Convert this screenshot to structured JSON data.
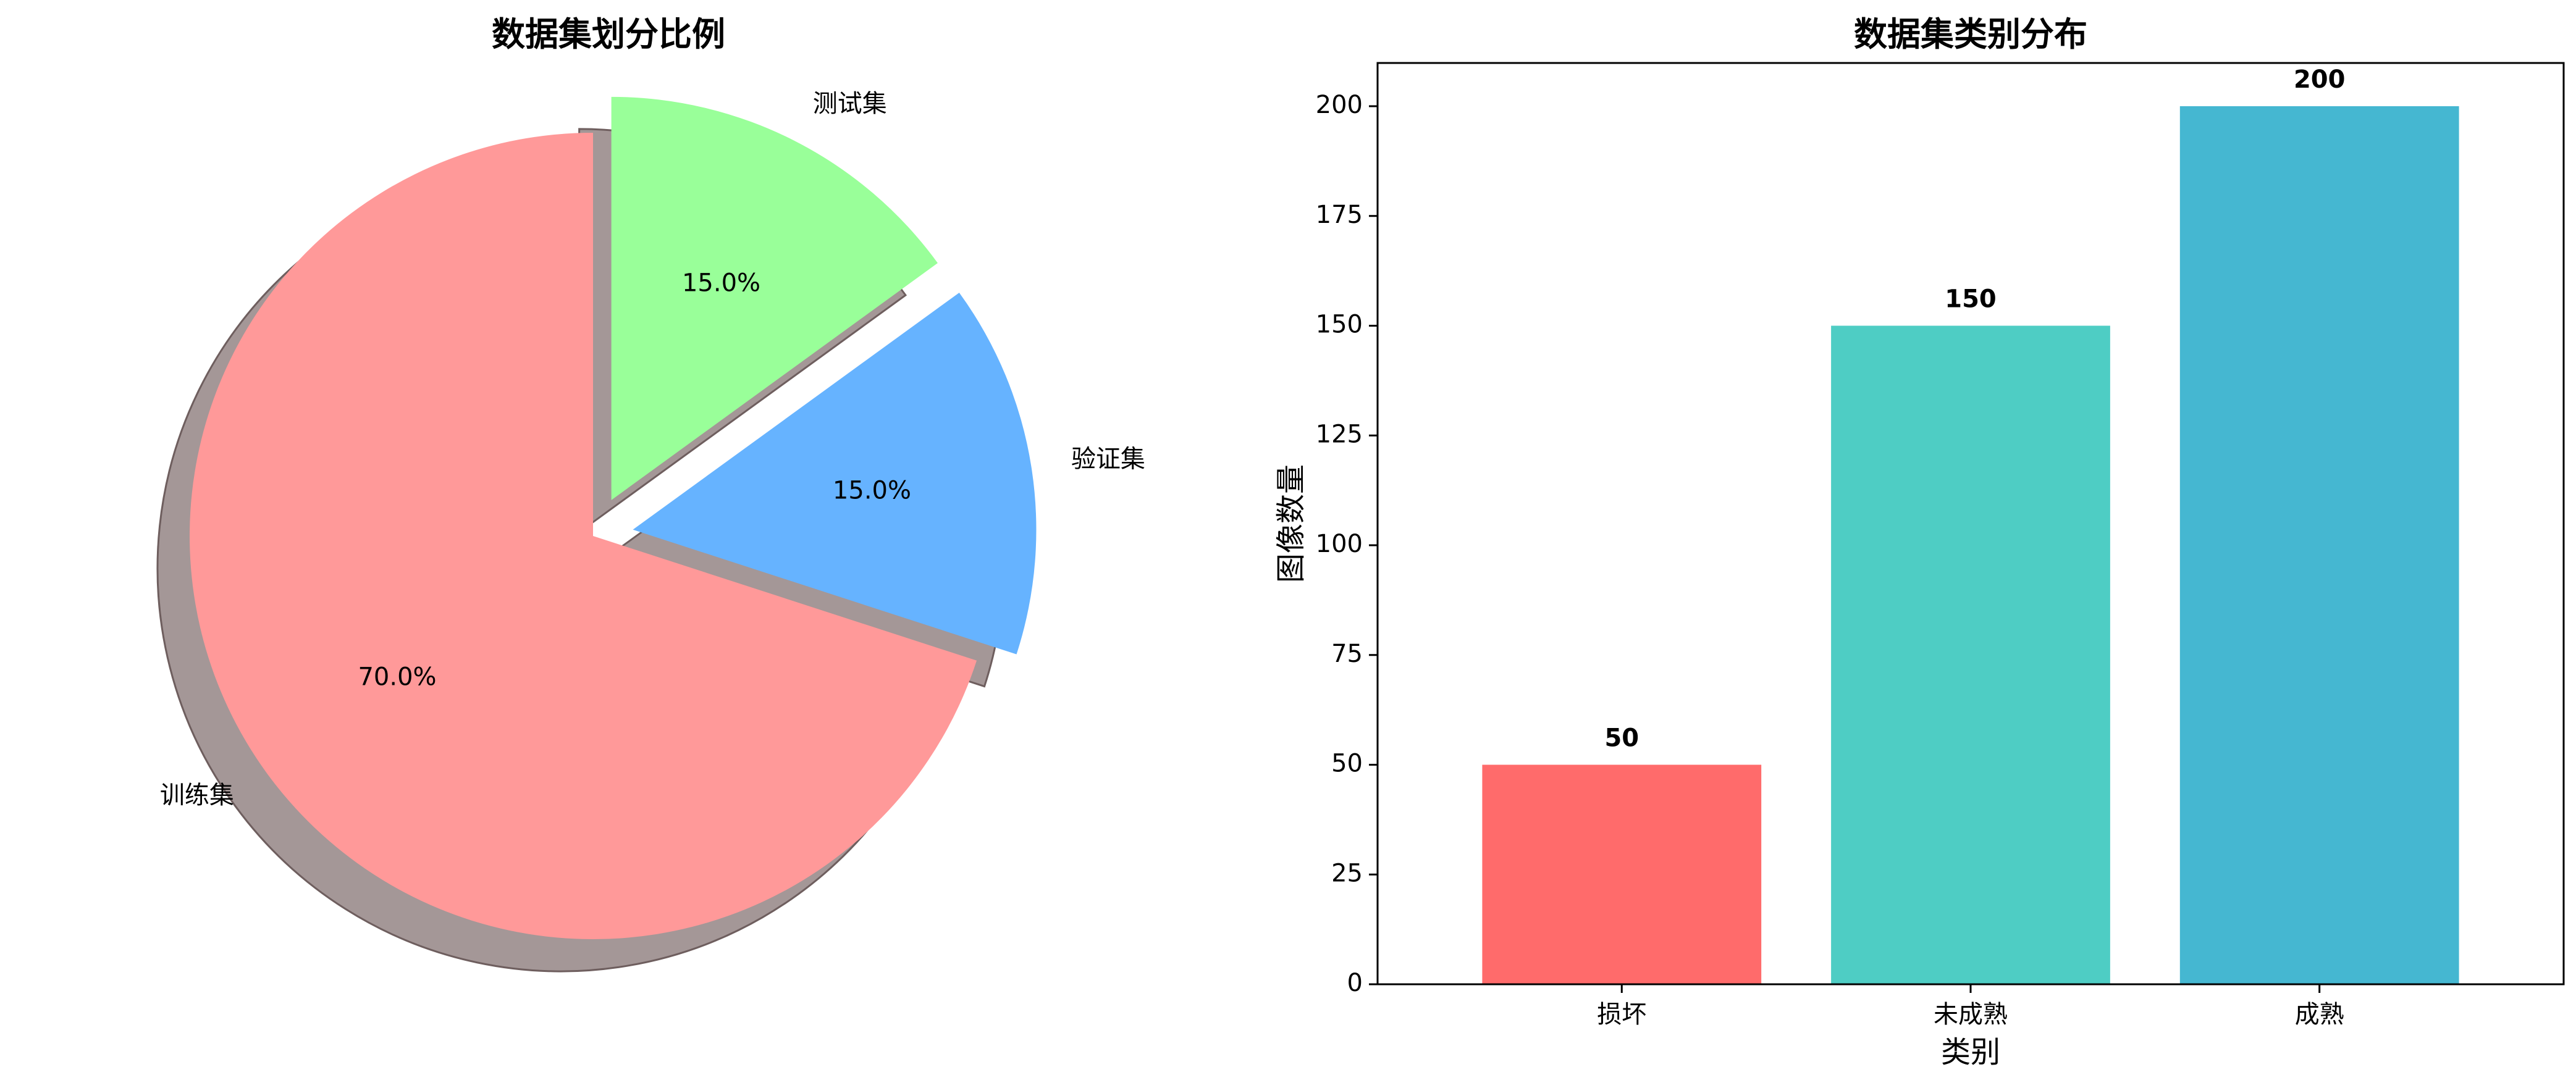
{
  "chart_data": [
    {
      "type": "pie",
      "title": "数据集划分比例",
      "labels": [
        "训练集",
        "验证集",
        "测试集"
      ],
      "values": [
        70.0,
        15.0,
        15.0
      ],
      "percent_labels": [
        "70.0%",
        "15.0%",
        "15.0%"
      ],
      "colors": [
        "#ff9999",
        "#66b3ff",
        "#99ff99"
      ],
      "explode": [
        0,
        0.1,
        0.1
      ],
      "start_angle_deg": 90,
      "shadow": true
    },
    {
      "type": "bar",
      "title": "数据集类别分布",
      "categories": [
        "损坏",
        "未成熟",
        "成熟"
      ],
      "values": [
        50,
        150,
        200
      ],
      "value_labels": [
        "50",
        "150",
        "200"
      ],
      "colors": [
        "#ff6b6b",
        "#4ecdc4",
        "#45b7d1"
      ],
      "xlabel": "类别",
      "ylabel": "图像数量",
      "ylim": [
        0,
        210
      ],
      "yticks": [
        0,
        25,
        50,
        75,
        100,
        125,
        150,
        175,
        200
      ],
      "ytick_labels": [
        "0",
        "25",
        "50",
        "75",
        "100",
        "125",
        "150",
        "175",
        "200"
      ],
      "grid": false
    }
  ]
}
